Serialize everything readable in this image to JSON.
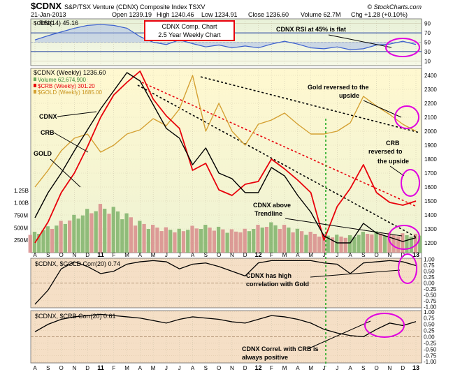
{
  "header": {
    "symbol": "$CDNX",
    "name": "S&P/TSX Venture (CDNX) Composite Index  TSXV",
    "copyright": "© StockCharts.com",
    "date": "21-Jan-2013",
    "open": "Open 1239.19",
    "high": "High 1240.46",
    "low": "Low 1234.91",
    "close": "Close 1236.60",
    "volume": "Volume 62.7M",
    "chg": "Chg +1.28 (+0.10%)"
  },
  "title_box": {
    "line1": "CDNX Comp. Chart",
    "line2": "2.5 Year Weekly Chart"
  },
  "annotations": {
    "rsi_flat": "CDNX RSI at 45% is flat",
    "gold_reversed_1": "Gold reversed to the",
    "gold_reversed_2": "upside",
    "crb_reversed_1": "CRB",
    "crb_reversed_2": "reversed to",
    "crb_reversed_3": "the upside",
    "cdnx_label": "CDNX",
    "crb_label": "CRB",
    "gold_label": "GOLD",
    "cdnx_above_1": "CDNX above",
    "cdnx_above_2": "Trendline",
    "high_corr_1": "CDNX has high",
    "high_corr_2": "correlation with Gold",
    "crb_corr_1": "CDNX Correl. with CRB is",
    "crb_corr_2": "always positive"
  },
  "colors": {
    "cdnx": "#000000",
    "crb": "#e8000b",
    "gold": "#d4a032",
    "volume_up": "#7fb26a",
    "volume_down": "#d88b8b",
    "rsi": "#3a5fcd",
    "rsi_band": "#1f3fa0",
    "highlight_circle": "#e000e0",
    "trendline_black": "#000000",
    "trendline_red": "#e8000b",
    "vertical_marker": "#22aa22",
    "main_bg_top": "#fff6c8",
    "main_bg_bottom": "#f1f5d8",
    "corr_bg": "#f4dcc4",
    "rsi_bg": "#eef4d6"
  },
  "x_axis": {
    "labels": [
      "A",
      "S",
      "O",
      "N",
      "D",
      "11",
      "F",
      "M",
      "A",
      "M",
      "J",
      "J",
      "A",
      "S",
      "O",
      "N",
      "D",
      "12",
      "F",
      "M",
      "A",
      "M",
      "J",
      "J",
      "A",
      "S",
      "O",
      "N",
      "D",
      "13"
    ],
    "bold_labels": [
      "11",
      "12",
      "13"
    ]
  },
  "rsi_panel": {
    "legend": "RSI(14) 45.16",
    "symbol": "$CDNX",
    "ticks": [
      "90",
      "70",
      "50",
      "30",
      "10"
    ],
    "tick_values": [
      90,
      70,
      50,
      30,
      10
    ],
    "overbought": 70,
    "oversold": 30,
    "values": [
      55,
      64,
      72,
      80,
      86,
      88,
      86,
      80,
      62,
      50,
      45,
      55,
      47,
      40,
      44,
      38,
      42,
      38,
      46,
      52,
      46,
      38,
      36,
      40,
      34,
      36,
      44,
      46,
      52,
      45
    ],
    "ylim": [
      0,
      100
    ]
  },
  "main_panel": {
    "legend_cdnx": "$CDNX (Weekly) 1236.60",
    "legend_volume": "Volume 62,674,900",
    "legend_crb": "$CRB (Weekly) 301.20",
    "legend_gold": "$GOLD (Weekly) 1685.00",
    "right_ticks": [
      "2400",
      "2300",
      "2200",
      "2100",
      "2000",
      "1900",
      "1800",
      "1700",
      "1600",
      "1500",
      "1400",
      "1300",
      "1200"
    ],
    "right_tick_values": [
      2400,
      2300,
      2200,
      2100,
      2000,
      1900,
      1800,
      1700,
      1600,
      1500,
      1400,
      1300,
      1200
    ],
    "volume_ticks": [
      "1.25B",
      "1.00B",
      "750M",
      "500M",
      "250M"
    ],
    "volume_tick_values": [
      1250,
      1000,
      750,
      500,
      250
    ],
    "ylim": [
      1130,
      2450
    ]
  },
  "gold_corr_panel": {
    "legend": "$CDNX, $GOLD Corr(20) 0.74",
    "ticks": [
      "1.00",
      "0.75",
      "0.50",
      "0.25",
      "0.00",
      "-0.25",
      "-0.50",
      "-0.75",
      "-1.00"
    ],
    "tick_values": [
      1.0,
      0.75,
      0.5,
      0.25,
      0.0,
      -0.25,
      -0.5,
      -0.75,
      -1.0
    ],
    "values": [
      -0.9,
      -0.3,
      0.6,
      0.9,
      0.7,
      0.4,
      0.5,
      0.8,
      0.9,
      0.95,
      0.9,
      0.6,
      0.8,
      0.85,
      0.7,
      0.5,
      0.3,
      0.85,
      0.95,
      0.95,
      0.95,
      0.95,
      0.85,
      0.8,
      0.4,
      0.85,
      0.9,
      0.95,
      0.9,
      0.74
    ],
    "ylim": [
      -1.05,
      1.05
    ]
  },
  "crb_corr_panel": {
    "legend": "$CDNX, $CRB Corr(20) 0.61",
    "ticks": [
      "1.00",
      "0.75",
      "0.50",
      "0.25",
      "0.00",
      "-0.25",
      "-0.50",
      "-0.75",
      "-1.00"
    ],
    "tick_values": [
      1.0,
      0.75,
      0.5,
      0.25,
      0.0,
      -0.25,
      -0.5,
      -0.75,
      -1.0
    ],
    "values": [
      0.2,
      0.5,
      0.7,
      0.8,
      0.85,
      0.9,
      0.85,
      0.8,
      0.75,
      0.65,
      0.55,
      0.7,
      0.8,
      0.75,
      0.7,
      0.6,
      0.55,
      0.7,
      0.85,
      0.8,
      0.7,
      0.55,
      0.3,
      0.15,
      0.05,
      0.0,
      0.3,
      0.55,
      0.45,
      0.61
    ],
    "ylim": [
      -1.05,
      1.05
    ]
  },
  "chart_data": [
    {
      "type": "line",
      "title": "RSI(14)",
      "x": [
        "A",
        "S",
        "O",
        "N",
        "D",
        "11",
        "F",
        "M",
        "A",
        "M",
        "J",
        "J",
        "A",
        "S",
        "O",
        "N",
        "D",
        "12",
        "F",
        "M",
        "A",
        "M",
        "J",
        "J",
        "A",
        "S",
        "O",
        "N",
        "D",
        "13"
      ],
      "series": [
        {
          "name": "RSI(14)",
          "values": [
            55,
            64,
            72,
            80,
            86,
            88,
            86,
            80,
            62,
            50,
            45,
            55,
            47,
            40,
            44,
            38,
            42,
            38,
            46,
            52,
            46,
            38,
            36,
            40,
            34,
            36,
            44,
            46,
            52,
            45
          ]
        }
      ],
      "ylim": [
        0,
        100
      ]
    },
    {
      "type": "line",
      "x": [
        "A",
        "S",
        "O",
        "N",
        "D",
        "11",
        "F",
        "M",
        "A",
        "M",
        "J",
        "J",
        "A",
        "S",
        "O",
        "N",
        "D",
        "12",
        "F",
        "M",
        "A",
        "M",
        "J",
        "J",
        "A",
        "S",
        "O",
        "N",
        "D",
        "13"
      ],
      "series": [
        {
          "name": "$CDNX (Weekly) 1236.60",
          "values": [
            1380,
            1560,
            1700,
            1860,
            2010,
            2160,
            2290,
            2420,
            2360,
            2190,
            2020,
            1950,
            1760,
            1880,
            1700,
            1660,
            1560,
            1560,
            1740,
            1680,
            1540,
            1420,
            1250,
            1200,
            1200,
            1340,
            1270,
            1240,
            1210,
            1237
          ]
        },
        {
          "name": "$CRB (Weekly) 301.20",
          "values": [
            1200,
            1350,
            1560,
            1700,
            1890,
            2100,
            2260,
            2350,
            2430,
            2230,
            2110,
            2020,
            1720,
            1770,
            1580,
            1540,
            1620,
            1640,
            1800,
            1730,
            1650,
            1560,
            1220,
            1460,
            1590,
            1760,
            1560,
            1490,
            1470,
            1500
          ]
        },
        {
          "name": "$GOLD (Weekly) 1685.00",
          "values": [
            1600,
            1720,
            1860,
            1950,
            1980,
            1850,
            1900,
            1980,
            2010,
            2090,
            2040,
            2160,
            2400,
            2000,
            2200,
            2000,
            1900,
            2050,
            2080,
            2130,
            2050,
            1980,
            1980,
            2000,
            2060,
            2250,
            2180,
            2120,
            2050,
            2000
          ]
        }
      ],
      "ylim": [
        1130,
        2450
      ]
    },
    {
      "type": "bar",
      "title": "Volume 62,674,900",
      "categories": [
        "A",
        "S",
        "O",
        "N",
        "D",
        "11",
        "F",
        "M",
        "A",
        "M",
        "J",
        "J",
        "A",
        "S",
        "O",
        "N",
        "D",
        "12",
        "F",
        "M",
        "A",
        "M",
        "J",
        "J",
        "A",
        "S",
        "O",
        "N",
        "D",
        "13"
      ],
      "values": [
        420,
        530,
        640,
        760,
        880,
        980,
        920,
        790,
        640,
        560,
        510,
        480,
        540,
        560,
        520,
        470,
        480,
        560,
        610,
        560,
        480,
        420,
        380,
        360,
        350,
        420,
        430,
        400,
        390,
        380
      ],
      "ylim": [
        0,
        1500
      ]
    },
    {
      "type": "line",
      "title": "$CDNX, $GOLD Corr(20) 0.74",
      "x": [
        "A",
        "S",
        "O",
        "N",
        "D",
        "11",
        "F",
        "M",
        "A",
        "M",
        "J",
        "J",
        "A",
        "S",
        "O",
        "N",
        "D",
        "12",
        "F",
        "M",
        "A",
        "M",
        "J",
        "J",
        "A",
        "S",
        "O",
        "N",
        "D",
        "13"
      ],
      "values": [
        -0.9,
        -0.3,
        0.6,
        0.9,
        0.7,
        0.4,
        0.5,
        0.8,
        0.9,
        0.95,
        0.9,
        0.6,
        0.8,
        0.85,
        0.7,
        0.5,
        0.3,
        0.85,
        0.95,
        0.95,
        0.95,
        0.95,
        0.85,
        0.8,
        0.4,
        0.85,
        0.9,
        0.95,
        0.9,
        0.74
      ],
      "ylim": [
        -1,
        1
      ]
    },
    {
      "type": "line",
      "title": "$CDNX, $CRB Corr(20) 0.61",
      "x": [
        "A",
        "S",
        "O",
        "N",
        "D",
        "11",
        "F",
        "M",
        "A",
        "M",
        "J",
        "J",
        "A",
        "S",
        "O",
        "N",
        "D",
        "12",
        "F",
        "M",
        "A",
        "M",
        "J",
        "J",
        "A",
        "S",
        "O",
        "N",
        "D",
        "13"
      ],
      "values": [
        0.2,
        0.5,
        0.7,
        0.8,
        0.85,
        0.9,
        0.85,
        0.8,
        0.75,
        0.65,
        0.55,
        0.7,
        0.8,
        0.75,
        0.7,
        0.6,
        0.55,
        0.7,
        0.85,
        0.8,
        0.7,
        0.55,
        0.3,
        0.15,
        0.05,
        0.0,
        0.3,
        0.55,
        0.45,
        0.61
      ],
      "ylim": [
        -1,
        1
      ]
    }
  ]
}
